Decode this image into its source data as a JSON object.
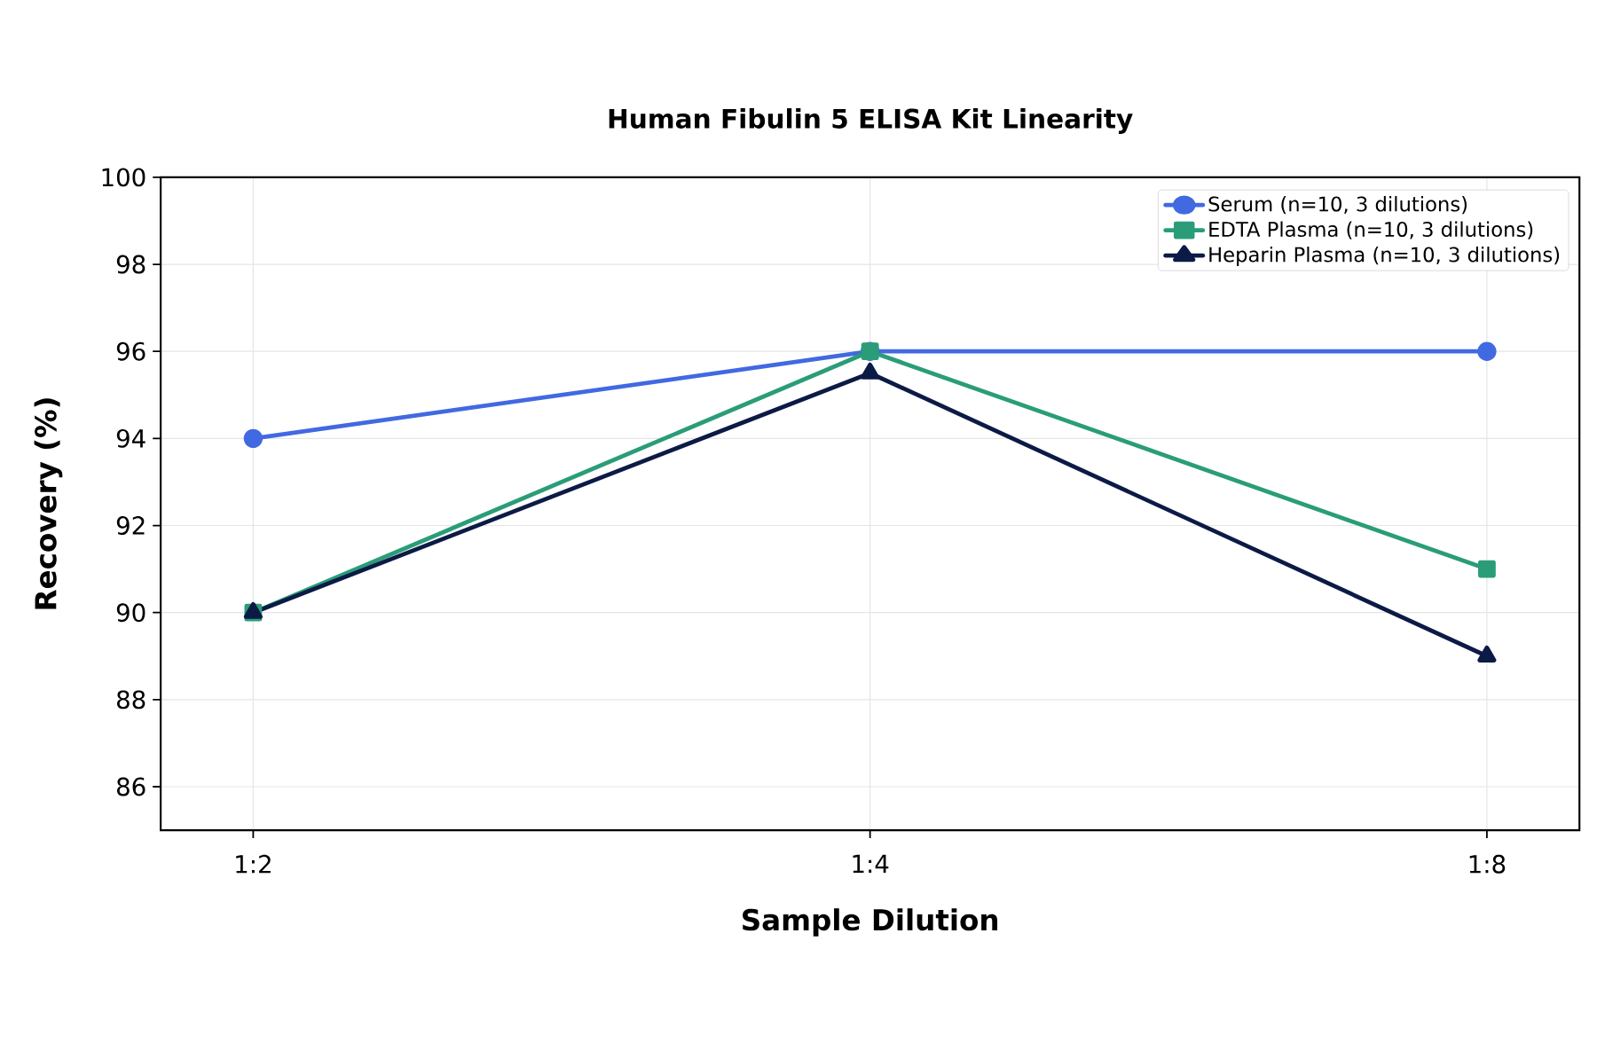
{
  "chart_data": {
    "type": "line",
    "title": "Human Fibulin 5 ELISA Kit Linearity",
    "xlabel": "Sample Dilution",
    "ylabel": "Recovery (%)",
    "categories": [
      "1:2",
      "1:4",
      "1:8"
    ],
    "series": [
      {
        "name": "Serum (n=10, 3 dilutions)",
        "color": "#4169e1",
        "marker": "circle",
        "values": [
          94,
          96,
          96
        ]
      },
      {
        "name": "EDTA Plasma (n=10, 3 dilutions)",
        "color": "#2a9d78",
        "marker": "square",
        "values": [
          90,
          96,
          91
        ]
      },
      {
        "name": "Heparin Plasma (n=10, 3 dilutions)",
        "color": "#0c1a46",
        "marker": "triangle",
        "values": [
          90,
          95.5,
          89
        ]
      }
    ],
    "ylim": [
      85,
      100
    ],
    "yticks": [
      86,
      88,
      90,
      92,
      94,
      96,
      98,
      100
    ],
    "grid": true,
    "legend": "top right",
    "line_style": "solid"
  }
}
